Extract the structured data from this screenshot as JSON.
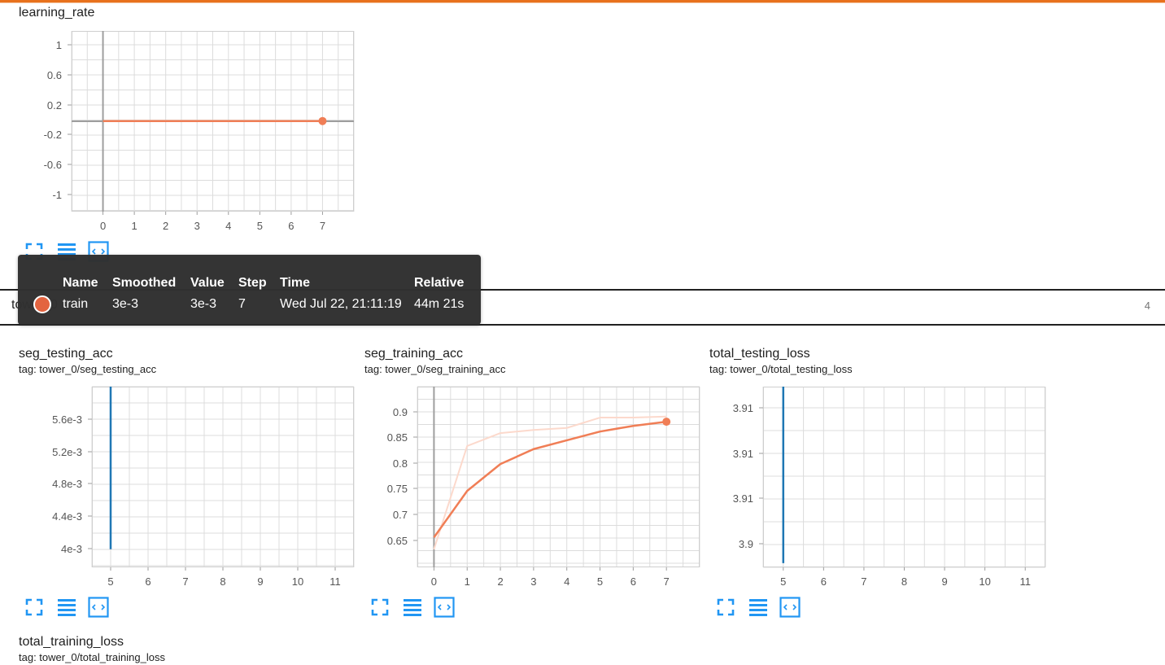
{
  "icons": {
    "fullscreen": "expand-icon",
    "data": "list-icon",
    "fit": "fit-domain-icon"
  },
  "colors": {
    "accent": "#e8711c",
    "train_smoothed": "#f07e56",
    "train_raw": "#fcd9cc",
    "test_line": "#1f77b4"
  },
  "group": {
    "name": "tower_0",
    "count": "4"
  },
  "tooltip": {
    "headers": {
      "name": "Name",
      "smoothed": "Smoothed",
      "value": "Value",
      "step": "Step",
      "time": "Time",
      "relative": "Relative"
    },
    "row": {
      "name": "train",
      "smoothed": "3e-3",
      "value": "3e-3",
      "step": "7",
      "time": "Wed Jul 22, 21:11:19",
      "relative": "44m 21s"
    }
  },
  "chart_data": [
    {
      "id": "learning_rate",
      "type": "line",
      "title": "learning_rate",
      "tag": "",
      "xlim": [
        -1,
        8
      ],
      "ylim": [
        -1.2,
        1.2
      ],
      "x_ticks": [
        "0",
        "1",
        "2",
        "3",
        "4",
        "5",
        "6",
        "7"
      ],
      "y_ticks": [
        "1",
        "0.6",
        "0.2",
        "-0.2",
        "-0.6",
        "-1"
      ],
      "grid": true,
      "series": [
        {
          "x": [
            0,
            1,
            2,
            3,
            4,
            5,
            6,
            7
          ],
          "y": [
            0.003,
            0.003,
            0.003,
            0.003,
            0.003,
            0.003,
            0.003,
            0.003
          ],
          "style": "smoothed"
        }
      ]
    },
    {
      "id": "seg_testing_acc",
      "type": "line",
      "title": "seg_testing_acc",
      "tag": "tag: tower_0/seg_testing_acc",
      "xlim": [
        4.5,
        11.5
      ],
      "ylim": [
        0.0037,
        0.006
      ],
      "x_ticks": [
        "5",
        "6",
        "7",
        "8",
        "9",
        "10",
        "11"
      ],
      "y_ticks": [
        "5.6e-3",
        "5.2e-3",
        "4.8e-3",
        "4.4e-3",
        "4e-3"
      ],
      "grid": true,
      "series": [
        {
          "x": [
            5,
            5
          ],
          "y": [
            0.00393,
            0.006
          ],
          "style": "test"
        }
      ]
    },
    {
      "id": "seg_training_acc",
      "type": "line",
      "title": "seg_training_acc",
      "tag": "tag: tower_0/seg_training_acc",
      "xlim": [
        -0.5,
        8
      ],
      "ylim": [
        0.6,
        0.95
      ],
      "x_ticks": [
        "0",
        "1",
        "2",
        "3",
        "4",
        "5",
        "6",
        "7"
      ],
      "y_ticks": [
        "0.9",
        "0.85",
        "0.8",
        "0.75",
        "0.7",
        "0.65"
      ],
      "grid": true,
      "series": [
        {
          "x": [
            0,
            1,
            2,
            3,
            4,
            5,
            6,
            7
          ],
          "y": [
            0.635,
            0.835,
            0.86,
            0.866,
            0.87,
            0.89,
            0.89,
            0.892
          ],
          "style": "raw"
        },
        {
          "x": [
            0,
            1,
            2,
            3,
            4,
            5,
            6,
            7
          ],
          "y": [
            0.658,
            0.748,
            0.8,
            0.829,
            0.846,
            0.863,
            0.874,
            0.882
          ],
          "style": "smoothed"
        }
      ]
    },
    {
      "id": "total_testing_loss",
      "type": "line",
      "title": "total_testing_loss",
      "tag": "tag: tower_0/total_testing_loss",
      "xlim": [
        4.5,
        11.5
      ],
      "ylim": [
        3.8955,
        3.917
      ],
      "x_ticks": [
        "5",
        "6",
        "7",
        "8",
        "9",
        "10",
        "11"
      ],
      "y_ticks": [
        "3.91",
        "3.91",
        "3.91",
        "3.9"
      ],
      "grid": true,
      "series": [
        {
          "x": [
            5,
            5,
            5
          ],
          "y": [
            3.917,
            3.9,
            3.896
          ],
          "style": "test"
        }
      ]
    },
    {
      "id": "total_training_loss",
      "type": "line",
      "title": "total_training_loss",
      "tag": "tag: tower_0/total_training_loss",
      "series": []
    }
  ]
}
